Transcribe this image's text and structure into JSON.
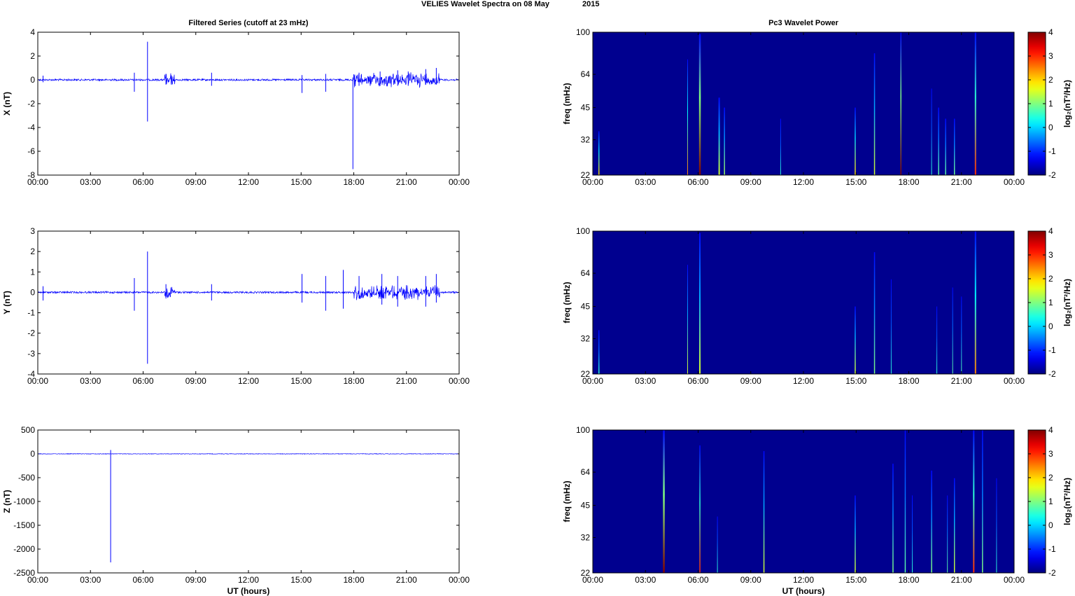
{
  "figure": {
    "suptitle_left": "VELIES Wavelet Spectra on 08 May",
    "suptitle_right": "2015",
    "left_title": "Filtered Series (cutoff at 23 mHz)",
    "right_title": "Pc3 Wavelet Power",
    "xlabel": "UT (hours)"
  },
  "colors": {
    "trace": "#0000ff",
    "spectrogram_bg": "#00008f"
  },
  "chart_data": [
    {
      "type": "line",
      "ylabel": "X (nT)",
      "ylim": [
        -8,
        4
      ],
      "yticks": [
        4,
        2,
        0,
        -2,
        -4,
        -6,
        -8
      ],
      "xlim": [
        0,
        24
      ],
      "xticks": [
        "00:00",
        "03:00",
        "06:00",
        "09:00",
        "12:00",
        "15:00",
        "18:00",
        "21:00",
        "00:00"
      ],
      "series": [
        {
          "values": [
            [
              0.3,
              0.35,
              -0.2
            ],
            [
              5.5,
              0.6,
              -1.0
            ],
            [
              6.25,
              3.2,
              -3.5
            ],
            [
              7.3,
              0.5,
              -0.4
            ],
            [
              9.9,
              0.6,
              -0.5
            ],
            [
              15.05,
              0.4,
              -1.1
            ],
            [
              16.4,
              0.5,
              -1.0
            ],
            [
              17.95,
              0.2,
              -7.5
            ],
            [
              18.3,
              0.6,
              -0.5
            ],
            [
              19.5,
              0.7,
              -0.5
            ],
            [
              20.5,
              0.8,
              -0.5
            ],
            [
              21.1,
              0.7,
              -0.5
            ],
            [
              22.1,
              0.9,
              -0.4
            ],
            [
              22.7,
              1.0,
              -0.4
            ]
          ]
        }
      ],
      "bursts_hours": [
        [
          7.2,
          7.8
        ],
        [
          18.0,
          22.9
        ]
      ]
    },
    {
      "type": "line",
      "ylabel": "Y (nT)",
      "ylim": [
        -4,
        3
      ],
      "yticks": [
        3,
        2,
        1,
        0,
        -1,
        -2,
        -3,
        -4
      ],
      "xlim": [
        0,
        24
      ],
      "xticks": [
        "00:00",
        "03:00",
        "06:00",
        "09:00",
        "12:00",
        "15:00",
        "18:00",
        "21:00",
        "00:00"
      ],
      "series": [
        {
          "values": [
            [
              0.3,
              0.3,
              -0.4
            ],
            [
              5.5,
              0.7,
              -0.9
            ],
            [
              6.25,
              2.0,
              -3.5
            ],
            [
              7.3,
              0.4,
              -0.3
            ],
            [
              9.9,
              0.4,
              -0.4
            ],
            [
              15.05,
              0.9,
              -0.5
            ],
            [
              16.4,
              0.8,
              -0.9
            ],
            [
              17.4,
              1.1,
              -0.8
            ],
            [
              18.3,
              0.8,
              -0.3
            ],
            [
              19.6,
              0.9,
              -0.6
            ],
            [
              20.5,
              0.8,
              -0.7
            ],
            [
              22.1,
              0.8,
              -0.7
            ],
            [
              22.7,
              0.9,
              -0.5
            ]
          ]
        }
      ],
      "bursts_hours": [
        [
          7.2,
          7.8
        ],
        [
          18.0,
          22.9
        ]
      ]
    },
    {
      "type": "line",
      "ylabel": "Z (nT)",
      "ylim": [
        -2500,
        500
      ],
      "yticks": [
        500,
        0,
        -500,
        -1000,
        -1500,
        -2000,
        -2500
      ],
      "xlim": [
        0,
        24
      ],
      "xticks": [
        "00:00",
        "03:00",
        "06:00",
        "09:00",
        "12:00",
        "15:00",
        "18:00",
        "21:00",
        "00:00"
      ],
      "series": [
        {
          "values": [
            [
              4.15,
              80,
              -2280
            ],
            [
              22.8,
              5,
              -8
            ]
          ]
        }
      ],
      "bursts_hours": []
    },
    {
      "type": "heatmap",
      "ylabel": "freq (mHz)",
      "yscale": "log",
      "ylim": [
        22,
        100
      ],
      "yticks": [
        100,
        64,
        45,
        32,
        22
      ],
      "xlim": [
        0,
        24
      ],
      "xticks": [
        "00:00",
        "03:00",
        "06:00",
        "09:00",
        "12:00",
        "15:00",
        "18:00",
        "21:00",
        "00:00"
      ],
      "colorbar": {
        "label": "log₂(nT²/Hz)",
        "ticks": [
          4,
          3,
          2,
          1,
          0,
          -1,
          -2
        ],
        "range": [
          -2,
          4
        ]
      },
      "features": [
        [
          0.35,
          2.0,
          35,
          1.5
        ],
        [
          5.4,
          2.5,
          75,
          1.0
        ],
        [
          6.1,
          4.0,
          98,
          2.5
        ],
        [
          7.2,
          1.5,
          50,
          2.0
        ],
        [
          7.5,
          1.2,
          45,
          1.5
        ],
        [
          10.7,
          0.5,
          40,
          1.0
        ],
        [
          14.95,
          2.0,
          45,
          1.5
        ],
        [
          16.05,
          1.5,
          80,
          1.5
        ],
        [
          17.55,
          4.0,
          100,
          1.5
        ],
        [
          19.3,
          0.5,
          55,
          1.0
        ],
        [
          19.7,
          0.8,
          45,
          1.5
        ],
        [
          20.1,
          0.8,
          40,
          1.5
        ],
        [
          20.6,
          0.9,
          40,
          1.5
        ],
        [
          21.8,
          3.0,
          100,
          2.0
        ]
      ]
    },
    {
      "type": "heatmap",
      "ylabel": "freq (mHz)",
      "yscale": "log",
      "ylim": [
        22,
        100
      ],
      "yticks": [
        100,
        64,
        45,
        32,
        22
      ],
      "xlim": [
        0,
        24
      ],
      "xticks": [
        "00:00",
        "03:00",
        "06:00",
        "09:00",
        "12:00",
        "15:00",
        "18:00",
        "21:00",
        "00:00"
      ],
      "colorbar": {
        "label": "log₂(nT²/Hz)",
        "ticks": [
          4,
          3,
          2,
          1,
          0,
          -1,
          -2
        ],
        "range": [
          -2,
          4
        ]
      },
      "features": [
        [
          0.35,
          0.5,
          35,
          1.5
        ],
        [
          5.4,
          1.5,
          70,
          1.0
        ],
        [
          6.1,
          1.5,
          98,
          2.0
        ],
        [
          14.95,
          1.5,
          45,
          1.5
        ],
        [
          16.05,
          1.0,
          80,
          1.5
        ],
        [
          17.0,
          0.5,
          60,
          1.0
        ],
        [
          19.6,
          0.5,
          45,
          1.0
        ],
        [
          20.5,
          0.8,
          55,
          1.0
        ],
        [
          21.0,
          0.7,
          50,
          1.0
        ],
        [
          21.8,
          2.5,
          100,
          2.0
        ]
      ]
    },
    {
      "type": "heatmap",
      "ylabel": "freq (mHz)",
      "yscale": "log",
      "ylim": [
        22,
        100
      ],
      "yticks": [
        100,
        64,
        45,
        32,
        22
      ],
      "xlim": [
        0,
        24
      ],
      "xticks": [
        "00:00",
        "03:00",
        "06:00",
        "09:00",
        "12:00",
        "15:00",
        "18:00",
        "21:00",
        "00:00"
      ],
      "colorbar": {
        "label": "log₂(nT²/Hz)",
        "ticks": [
          4,
          3,
          2,
          1,
          0,
          -1,
          -2
        ],
        "range": [
          -2,
          4
        ]
      },
      "features": [
        [
          4.05,
          4.0,
          100,
          2.5
        ],
        [
          6.1,
          3.0,
          85,
          1.5
        ],
        [
          7.1,
          0.5,
          40,
          1.0
        ],
        [
          9.75,
          1.5,
          80,
          1.5
        ],
        [
          14.95,
          1.5,
          50,
          1.5
        ],
        [
          17.1,
          1.0,
          70,
          1.5
        ],
        [
          17.8,
          0.8,
          100,
          1.5
        ],
        [
          18.2,
          0.5,
          50,
          1.0
        ],
        [
          19.3,
          1.0,
          65,
          1.5
        ],
        [
          20.2,
          0.8,
          50,
          1.0
        ],
        [
          20.6,
          1.5,
          60,
          1.5
        ],
        [
          21.7,
          3.0,
          100,
          2.0
        ],
        [
          22.2,
          1.0,
          100,
          1.5
        ],
        [
          23.0,
          0.5,
          60,
          1.0
        ]
      ]
    }
  ]
}
